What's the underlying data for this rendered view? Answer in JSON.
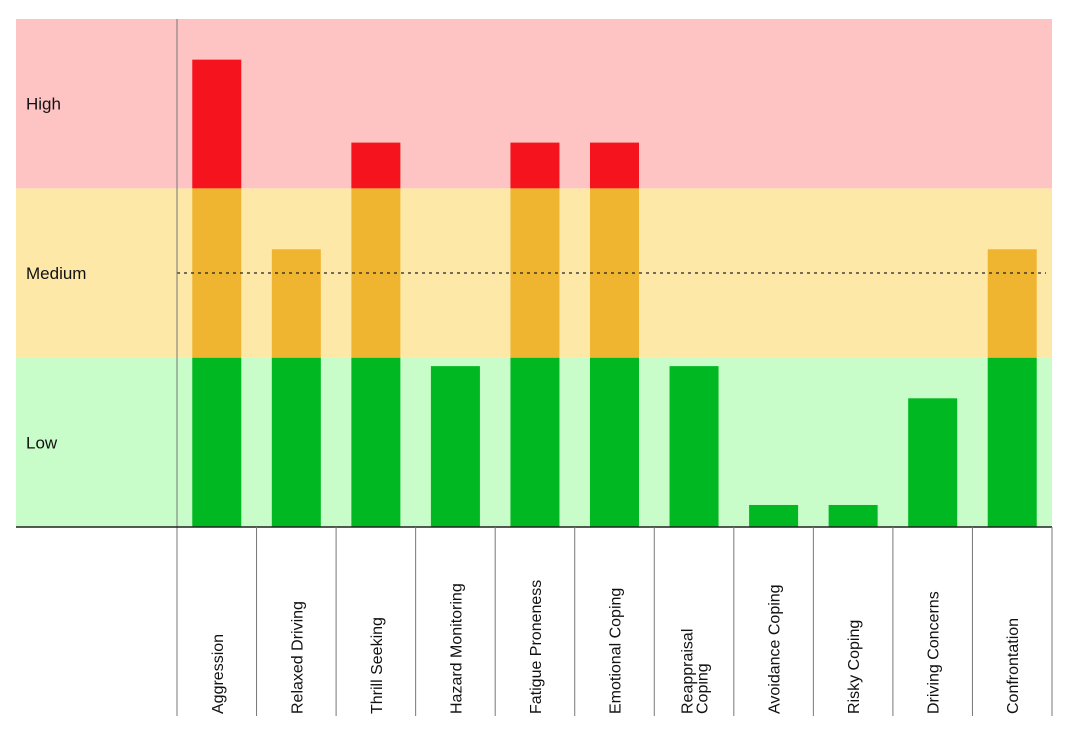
{
  "chart_data": {
    "type": "bar",
    "title": "",
    "xlabel": "",
    "ylabel": "",
    "ylim": [
      0,
      3
    ],
    "grid": false,
    "legend": "none",
    "bands": [
      {
        "label": "Low",
        "from": 0,
        "to": 1,
        "color": "#c8fcc8"
      },
      {
        "label": "Medium",
        "from": 1,
        "to": 2,
        "color": "#fde8a8"
      },
      {
        "label": "High",
        "from": 2,
        "to": 3,
        "color": "#fec3c3"
      }
    ],
    "reference_line": {
      "value": 1.5,
      "style": "dotted"
    },
    "segment_colors": {
      "low": "#00b822",
      "medium": "#f0b530",
      "high": "#f5141e"
    },
    "categories": [
      [
        "Aggression"
      ],
      [
        "Relaxed Driving"
      ],
      [
        "Thrill Seeking"
      ],
      [
        "Hazard Monitoring"
      ],
      [
        "Fatigue Proneness"
      ],
      [
        "Emotional Coping"
      ],
      [
        "Reappraisal",
        "Coping"
      ],
      [
        "Avoidance Coping"
      ],
      [
        "Risky Coping"
      ],
      [
        "Driving Concerns"
      ],
      [
        "Confrontation"
      ]
    ],
    "values": [
      2.76,
      1.64,
      2.27,
      0.95,
      2.27,
      2.27,
      0.95,
      0.13,
      0.13,
      0.76,
      1.64
    ]
  }
}
